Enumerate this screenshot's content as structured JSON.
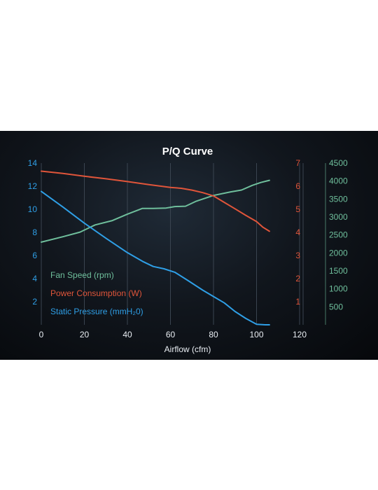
{
  "colors": {
    "fan_speed": "#6fbf9c",
    "power": "#e0553a",
    "pressure": "#2f9fe6",
    "axis_text": "#e9eef3",
    "grid": "#3a4450"
  },
  "chart_data": {
    "type": "line",
    "title": "P/Q Curve",
    "xlabel": "Airflow (cfm)",
    "xlim": [
      0,
      120
    ],
    "x_ticks": [
      "0",
      "20",
      "40",
      "60",
      "80",
      "100",
      "120"
    ],
    "x_tick_values": [
      0,
      20,
      40,
      60,
      80,
      100,
      120
    ],
    "axes": {
      "pressure": {
        "ylim": [
          0,
          14
        ],
        "ticks": [
          "2",
          "4",
          "6",
          "8",
          "10",
          "12",
          "14"
        ],
        "tick_values": [
          2,
          4,
          6,
          8,
          10,
          12,
          14
        ]
      },
      "power": {
        "ylim": [
          0,
          7
        ],
        "ticks": [
          "1",
          "2",
          "3",
          "4",
          "5",
          "6",
          "7"
        ],
        "tick_values": [
          1,
          2,
          3,
          4,
          5,
          6,
          7
        ]
      },
      "fan_speed": {
        "ylim": [
          0,
          4500
        ],
        "ticks": [
          "500",
          "1000",
          "1500",
          "2000",
          "2500",
          "3000",
          "3500",
          "4000",
          "4500"
        ],
        "tick_values": [
          500,
          1000,
          1500,
          2000,
          2500,
          3000,
          3500,
          4000,
          4500
        ]
      }
    },
    "grid": "vertical",
    "legend_position": "bottom-left",
    "series": [
      {
        "name": "Fan Speed (rpm)",
        "axis": "fan_speed",
        "x": [
          0,
          10,
          18,
          25,
          33,
          40,
          47,
          52,
          58,
          62,
          67,
          72,
          80,
          88,
          93,
          98,
          102,
          106
        ],
        "y": [
          2300,
          2450,
          2580,
          2780,
          2900,
          3080,
          3240,
          3240,
          3250,
          3290,
          3300,
          3440,
          3600,
          3700,
          3750,
          3880,
          3960,
          4020
        ]
      },
      {
        "name": "Power Consumption (W)",
        "axis": "power",
        "x": [
          0,
          10,
          20,
          30,
          40,
          50,
          60,
          65,
          70,
          75,
          80,
          85,
          90,
          95,
          100,
          103,
          106
        ],
        "y": [
          6.65,
          6.55,
          6.43,
          6.32,
          6.2,
          6.07,
          5.95,
          5.91,
          5.83,
          5.72,
          5.58,
          5.3,
          5.02,
          4.74,
          4.47,
          4.22,
          4.05
        ]
      },
      {
        "name": "Static Pressure (mmH₂0)",
        "axis": "pressure",
        "x": [
          0,
          10,
          20,
          30,
          40,
          47,
          52,
          57,
          62,
          68,
          75,
          80,
          85,
          90,
          95,
          100,
          104,
          106
        ],
        "y": [
          11.55,
          10.2,
          8.8,
          7.5,
          6.25,
          5.5,
          5.05,
          4.85,
          4.55,
          3.85,
          3.0,
          2.45,
          1.9,
          1.15,
          0.55,
          0.05,
          -0.7,
          -1.0
        ]
      }
    ]
  }
}
